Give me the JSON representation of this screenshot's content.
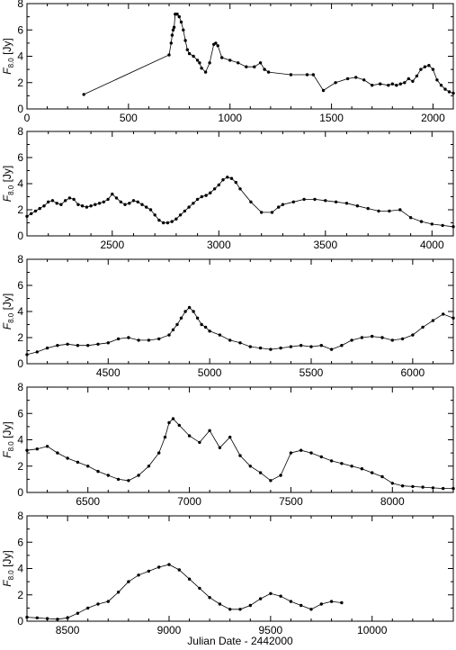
{
  "chart_data": [
    {
      "type": "line",
      "xlim": [
        0,
        2100
      ],
      "ylim": [
        0,
        8
      ],
      "xticks": [
        0,
        500,
        1000,
        1500,
        2000
      ],
      "yticks": [
        0,
        2,
        4,
        6,
        8
      ],
      "ylabel_main": "F",
      "ylabel_sub": "8.0",
      "ylabel_unit": " [Jy]",
      "series": [
        {
          "x": [
            280,
            700,
            710,
            715,
            720,
            725,
            730,
            740,
            750,
            760,
            770,
            780,
            790,
            800,
            820,
            840,
            850,
            860,
            880,
            900,
            920,
            930,
            940,
            960,
            1000,
            1040,
            1080,
            1120,
            1150,
            1170,
            1190,
            1300,
            1380,
            1410,
            1460,
            1520,
            1580,
            1620,
            1660,
            1700,
            1740,
            1780,
            1800,
            1820,
            1840,
            1860,
            1880,
            1900,
            1920,
            1940,
            1960,
            1980,
            2000,
            2020,
            2040,
            2060,
            2080,
            2100
          ],
          "y": [
            1.1,
            4.1,
            5.0,
            5.6,
            6.0,
            6.2,
            7.2,
            7.2,
            7.0,
            6.6,
            6.0,
            5.2,
            4.5,
            4.2,
            4.0,
            3.7,
            3.5,
            3.1,
            2.8,
            3.5,
            4.9,
            5.0,
            4.8,
            3.9,
            3.7,
            3.5,
            3.2,
            3.2,
            3.5,
            3.0,
            2.8,
            2.6,
            2.6,
            2.6,
            1.4,
            2.0,
            2.3,
            2.4,
            2.2,
            1.8,
            1.9,
            1.8,
            1.9,
            1.8,
            1.9,
            2.0,
            2.3,
            2.1,
            2.5,
            3.0,
            3.2,
            3.3,
            3.0,
            2.2,
            1.8,
            1.5,
            1.3,
            1.2
          ]
        }
      ]
    },
    {
      "type": "line",
      "xlim": [
        2100,
        4100
      ],
      "ylim": [
        0,
        8
      ],
      "xticks": [
        2500,
        3000,
        3500,
        4000
      ],
      "yticks": [
        0,
        2,
        4,
        6,
        8
      ],
      "ylabel_main": "F",
      "ylabel_sub": "8.0",
      "ylabel_unit": " [Jy]",
      "series": [
        {
          "x": [
            2100,
            2120,
            2140,
            2160,
            2180,
            2200,
            2220,
            2240,
            2260,
            2280,
            2300,
            2320,
            2340,
            2360,
            2380,
            2400,
            2420,
            2440,
            2460,
            2480,
            2500,
            2520,
            2540,
            2560,
            2580,
            2600,
            2620,
            2640,
            2660,
            2680,
            2700,
            2720,
            2740,
            2760,
            2780,
            2800,
            2820,
            2840,
            2860,
            2880,
            2900,
            2920,
            2940,
            2960,
            2980,
            3000,
            3020,
            3040,
            3060,
            3080,
            3100,
            3150,
            3200,
            3250,
            3280,
            3300,
            3350,
            3400,
            3450,
            3500,
            3550,
            3600,
            3650,
            3700,
            3750,
            3800,
            3850,
            3900,
            3950,
            4000,
            4050,
            4100
          ],
          "y": [
            1.5,
            1.7,
            1.9,
            2.1,
            2.3,
            2.6,
            2.7,
            2.5,
            2.4,
            2.7,
            2.9,
            2.8,
            2.4,
            2.3,
            2.2,
            2.3,
            2.4,
            2.5,
            2.6,
            2.8,
            3.2,
            2.9,
            2.6,
            2.4,
            2.5,
            2.7,
            2.6,
            2.4,
            2.2,
            2.0,
            1.6,
            1.2,
            1.0,
            1.0,
            1.1,
            1.3,
            1.6,
            1.9,
            2.2,
            2.5,
            2.8,
            3.0,
            3.1,
            3.3,
            3.6,
            3.9,
            4.3,
            4.5,
            4.4,
            4.1,
            3.6,
            2.6,
            1.8,
            1.8,
            2.2,
            2.4,
            2.6,
            2.8,
            2.8,
            2.7,
            2.6,
            2.5,
            2.3,
            2.1,
            1.9,
            1.9,
            2.0,
            1.4,
            1.1,
            0.9,
            0.8,
            0.7
          ]
        }
      ]
    },
    {
      "type": "line",
      "xlim": [
        4100,
        6200
      ],
      "ylim": [
        0,
        8
      ],
      "xticks": [
        4500,
        5000,
        5500,
        6000
      ],
      "yticks": [
        0,
        2,
        4,
        6,
        8
      ],
      "ylabel_main": "F",
      "ylabel_sub": "8.0",
      "ylabel_unit": " [Jy]",
      "series": [
        {
          "x": [
            4100,
            4150,
            4200,
            4250,
            4300,
            4350,
            4400,
            4450,
            4500,
            4550,
            4600,
            4650,
            4700,
            4750,
            4800,
            4820,
            4840,
            4860,
            4880,
            4900,
            4920,
            4940,
            4960,
            4980,
            5000,
            5050,
            5100,
            5150,
            5200,
            5250,
            5300,
            5350,
            5400,
            5450,
            5500,
            5550,
            5600,
            5650,
            5700,
            5750,
            5800,
            5850,
            5900,
            5950,
            6000,
            6050,
            6100,
            6150,
            6200
          ],
          "y": [
            0.7,
            0.9,
            1.2,
            1.4,
            1.5,
            1.4,
            1.4,
            1.5,
            1.6,
            1.9,
            2.0,
            1.8,
            1.8,
            1.9,
            2.2,
            2.6,
            3.0,
            3.5,
            4.0,
            4.3,
            4.0,
            3.5,
            3.0,
            2.8,
            2.5,
            2.2,
            1.8,
            1.6,
            1.3,
            1.2,
            1.1,
            1.2,
            1.3,
            1.4,
            1.3,
            1.4,
            1.1,
            1.4,
            1.8,
            2.0,
            2.1,
            2.0,
            1.8,
            1.9,
            2.2,
            2.8,
            3.3,
            3.8,
            3.5
          ]
        }
      ]
    },
    {
      "type": "line",
      "xlim": [
        6200,
        8300
      ],
      "ylim": [
        0,
        8
      ],
      "xticks": [
        6500,
        7000,
        7500,
        8000
      ],
      "yticks": [
        0,
        2,
        4,
        6,
        8
      ],
      "ylabel_main": "F",
      "ylabel_sub": "8.0",
      "ylabel_unit": " [Jy]",
      "series": [
        {
          "x": [
            6200,
            6250,
            6300,
            6350,
            6400,
            6450,
            6500,
            6550,
            6600,
            6650,
            6700,
            6750,
            6800,
            6850,
            6880,
            6900,
            6920,
            6950,
            7000,
            7050,
            7100,
            7150,
            7200,
            7250,
            7300,
            7350,
            7400,
            7450,
            7500,
            7550,
            7600,
            7650,
            7700,
            7750,
            7800,
            7850,
            7900,
            7950,
            8000,
            8050,
            8100,
            8150,
            8200,
            8250,
            8300
          ],
          "y": [
            3.2,
            3.3,
            3.5,
            3.0,
            2.6,
            2.3,
            2.0,
            1.6,
            1.3,
            1.0,
            0.9,
            1.3,
            2.0,
            3.0,
            4.2,
            5.3,
            5.6,
            5.1,
            4.3,
            3.8,
            4.7,
            3.4,
            4.2,
            2.8,
            2.0,
            1.5,
            0.9,
            1.3,
            3.0,
            3.2,
            3.0,
            2.7,
            2.4,
            2.2,
            2.0,
            1.8,
            1.5,
            1.2,
            0.7,
            0.5,
            0.45,
            0.4,
            0.35,
            0.3,
            0.3
          ]
        }
      ]
    },
    {
      "type": "line",
      "xlim": [
        8300,
        10400
      ],
      "ylim": [
        0,
        8
      ],
      "xticks": [
        8500,
        9000,
        9500,
        10000
      ],
      "yticks": [
        0,
        2,
        4,
        6,
        8
      ],
      "ylabel_main": "F",
      "ylabel_sub": "8.0",
      "ylabel_unit": " [Jy]",
      "xlabel": "Julian Date - 2442000",
      "series": [
        {
          "x": [
            8300,
            8350,
            8400,
            8450,
            8500,
            8550,
            8600,
            8650,
            8700,
            8750,
            8800,
            8850,
            8900,
            8950,
            9000,
            9050,
            9100,
            9150,
            9200,
            9250,
            9300,
            9350,
            9400,
            9450,
            9500,
            9550,
            9600,
            9650,
            9700,
            9750,
            9800,
            9850
          ],
          "y": [
            0.3,
            0.25,
            0.2,
            0.15,
            0.25,
            0.6,
            1.0,
            1.3,
            1.5,
            2.2,
            3.0,
            3.5,
            3.8,
            4.1,
            4.3,
            3.9,
            3.2,
            2.5,
            1.8,
            1.3,
            0.9,
            0.9,
            1.2,
            1.7,
            2.1,
            1.9,
            1.5,
            1.2,
            0.9,
            1.3,
            1.5,
            1.4
          ]
        }
      ]
    }
  ]
}
